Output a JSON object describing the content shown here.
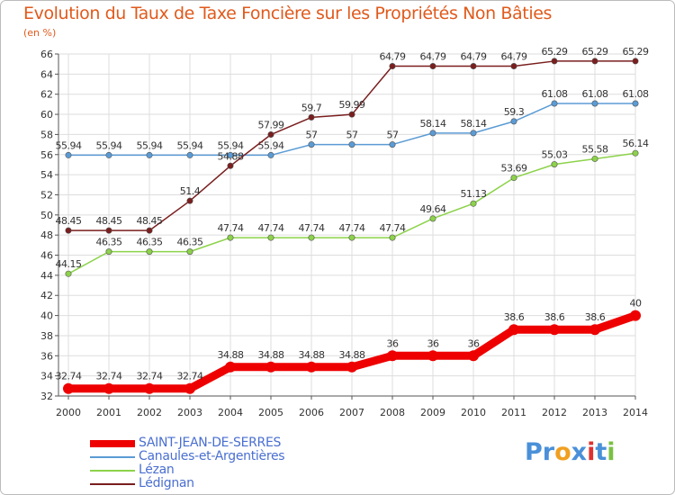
{
  "title": "Evolution du Taux de Taxe Foncière sur les Propriétés Non Bâties",
  "unit": "(en %)",
  "logo": {
    "text": [
      "Pr",
      "o",
      "x",
      "i",
      "t",
      "i"
    ],
    "colors": [
      "#4a90d9",
      "#f0a020",
      "#4a90d9",
      "#e03030",
      "#4a90d9",
      "#7ac043"
    ]
  },
  "chart_data": {
    "type": "line",
    "title": "Evolution du Taux de Taxe Foncière sur les Propriétés Non Bâties",
    "ylabel": "(en %)",
    "xlabel": "",
    "x": [
      "2000",
      "2001",
      "2002",
      "2003",
      "2004",
      "2005",
      "2006",
      "2007",
      "2008",
      "2009",
      "2010",
      "2011",
      "2012",
      "2013",
      "2014"
    ],
    "ylim": [
      32,
      66
    ],
    "yticks": [
      "32",
      "34",
      "36",
      "38",
      "40",
      "42",
      "44",
      "46",
      "48",
      "50",
      "52",
      "54",
      "56",
      "58",
      "60",
      "62",
      "64",
      "66"
    ],
    "grid": true,
    "legend_position": "bottom-left",
    "series": [
      {
        "name": "SAINT-JEAN-DE-SERRES",
        "color": "#ee0000",
        "thick": true,
        "values": [
          32.74,
          32.74,
          32.74,
          32.74,
          34.88,
          34.88,
          34.88,
          34.88,
          36,
          36,
          36,
          38.6,
          38.6,
          38.6,
          40
        ],
        "labels": [
          "32.74",
          "32.74",
          "32.74",
          "32.74",
          "34.88",
          "34.88",
          "34.88",
          "34.88",
          "36",
          "36",
          "36",
          "38.6",
          "38.6",
          "38.6",
          "40"
        ]
      },
      {
        "name": "Canaules-et-Argentières",
        "color": "#5b9bd5",
        "thick": false,
        "values": [
          55.94,
          55.94,
          55.94,
          55.94,
          55.94,
          55.94,
          57,
          57,
          57,
          58.14,
          58.14,
          59.3,
          61.08,
          61.08,
          61.08
        ],
        "labels": [
          "55.94",
          "55.94",
          "55.94",
          "55.94",
          "55.94",
          "55.94",
          "57",
          "57",
          "57",
          "58.14",
          "58.14",
          "59.3",
          "61.08",
          "61.08",
          "61.08"
        ]
      },
      {
        "name": "Lézan",
        "color": "#8cd24a",
        "thick": false,
        "values": [
          44.15,
          46.35,
          46.35,
          46.35,
          47.74,
          47.74,
          47.74,
          47.74,
          47.74,
          49.64,
          51.13,
          53.69,
          55.03,
          55.58,
          56.14
        ],
        "labels": [
          "44.15",
          "46.35",
          "46.35",
          "46.35",
          "47.74",
          "47.74",
          "47.74",
          "47.74",
          "47.74",
          "49.64",
          "51.13",
          "53.69",
          "55.03",
          "55.58",
          "56.14"
        ]
      },
      {
        "name": "Lédignan",
        "color": "#7a1e1e",
        "thick": false,
        "values": [
          48.45,
          48.45,
          48.45,
          51.4,
          54.88,
          57.99,
          59.7,
          59.99,
          64.79,
          64.79,
          64.79,
          64.79,
          65.29,
          65.29,
          65.29
        ],
        "labels": [
          "48.45",
          "48.45",
          "48.45",
          "51.4",
          "54.88",
          "57.99",
          "59.7",
          "59.99",
          "64.79",
          "64.79",
          "64.79",
          "64.79",
          "65.29",
          "65.29",
          "65.29"
        ]
      }
    ]
  }
}
